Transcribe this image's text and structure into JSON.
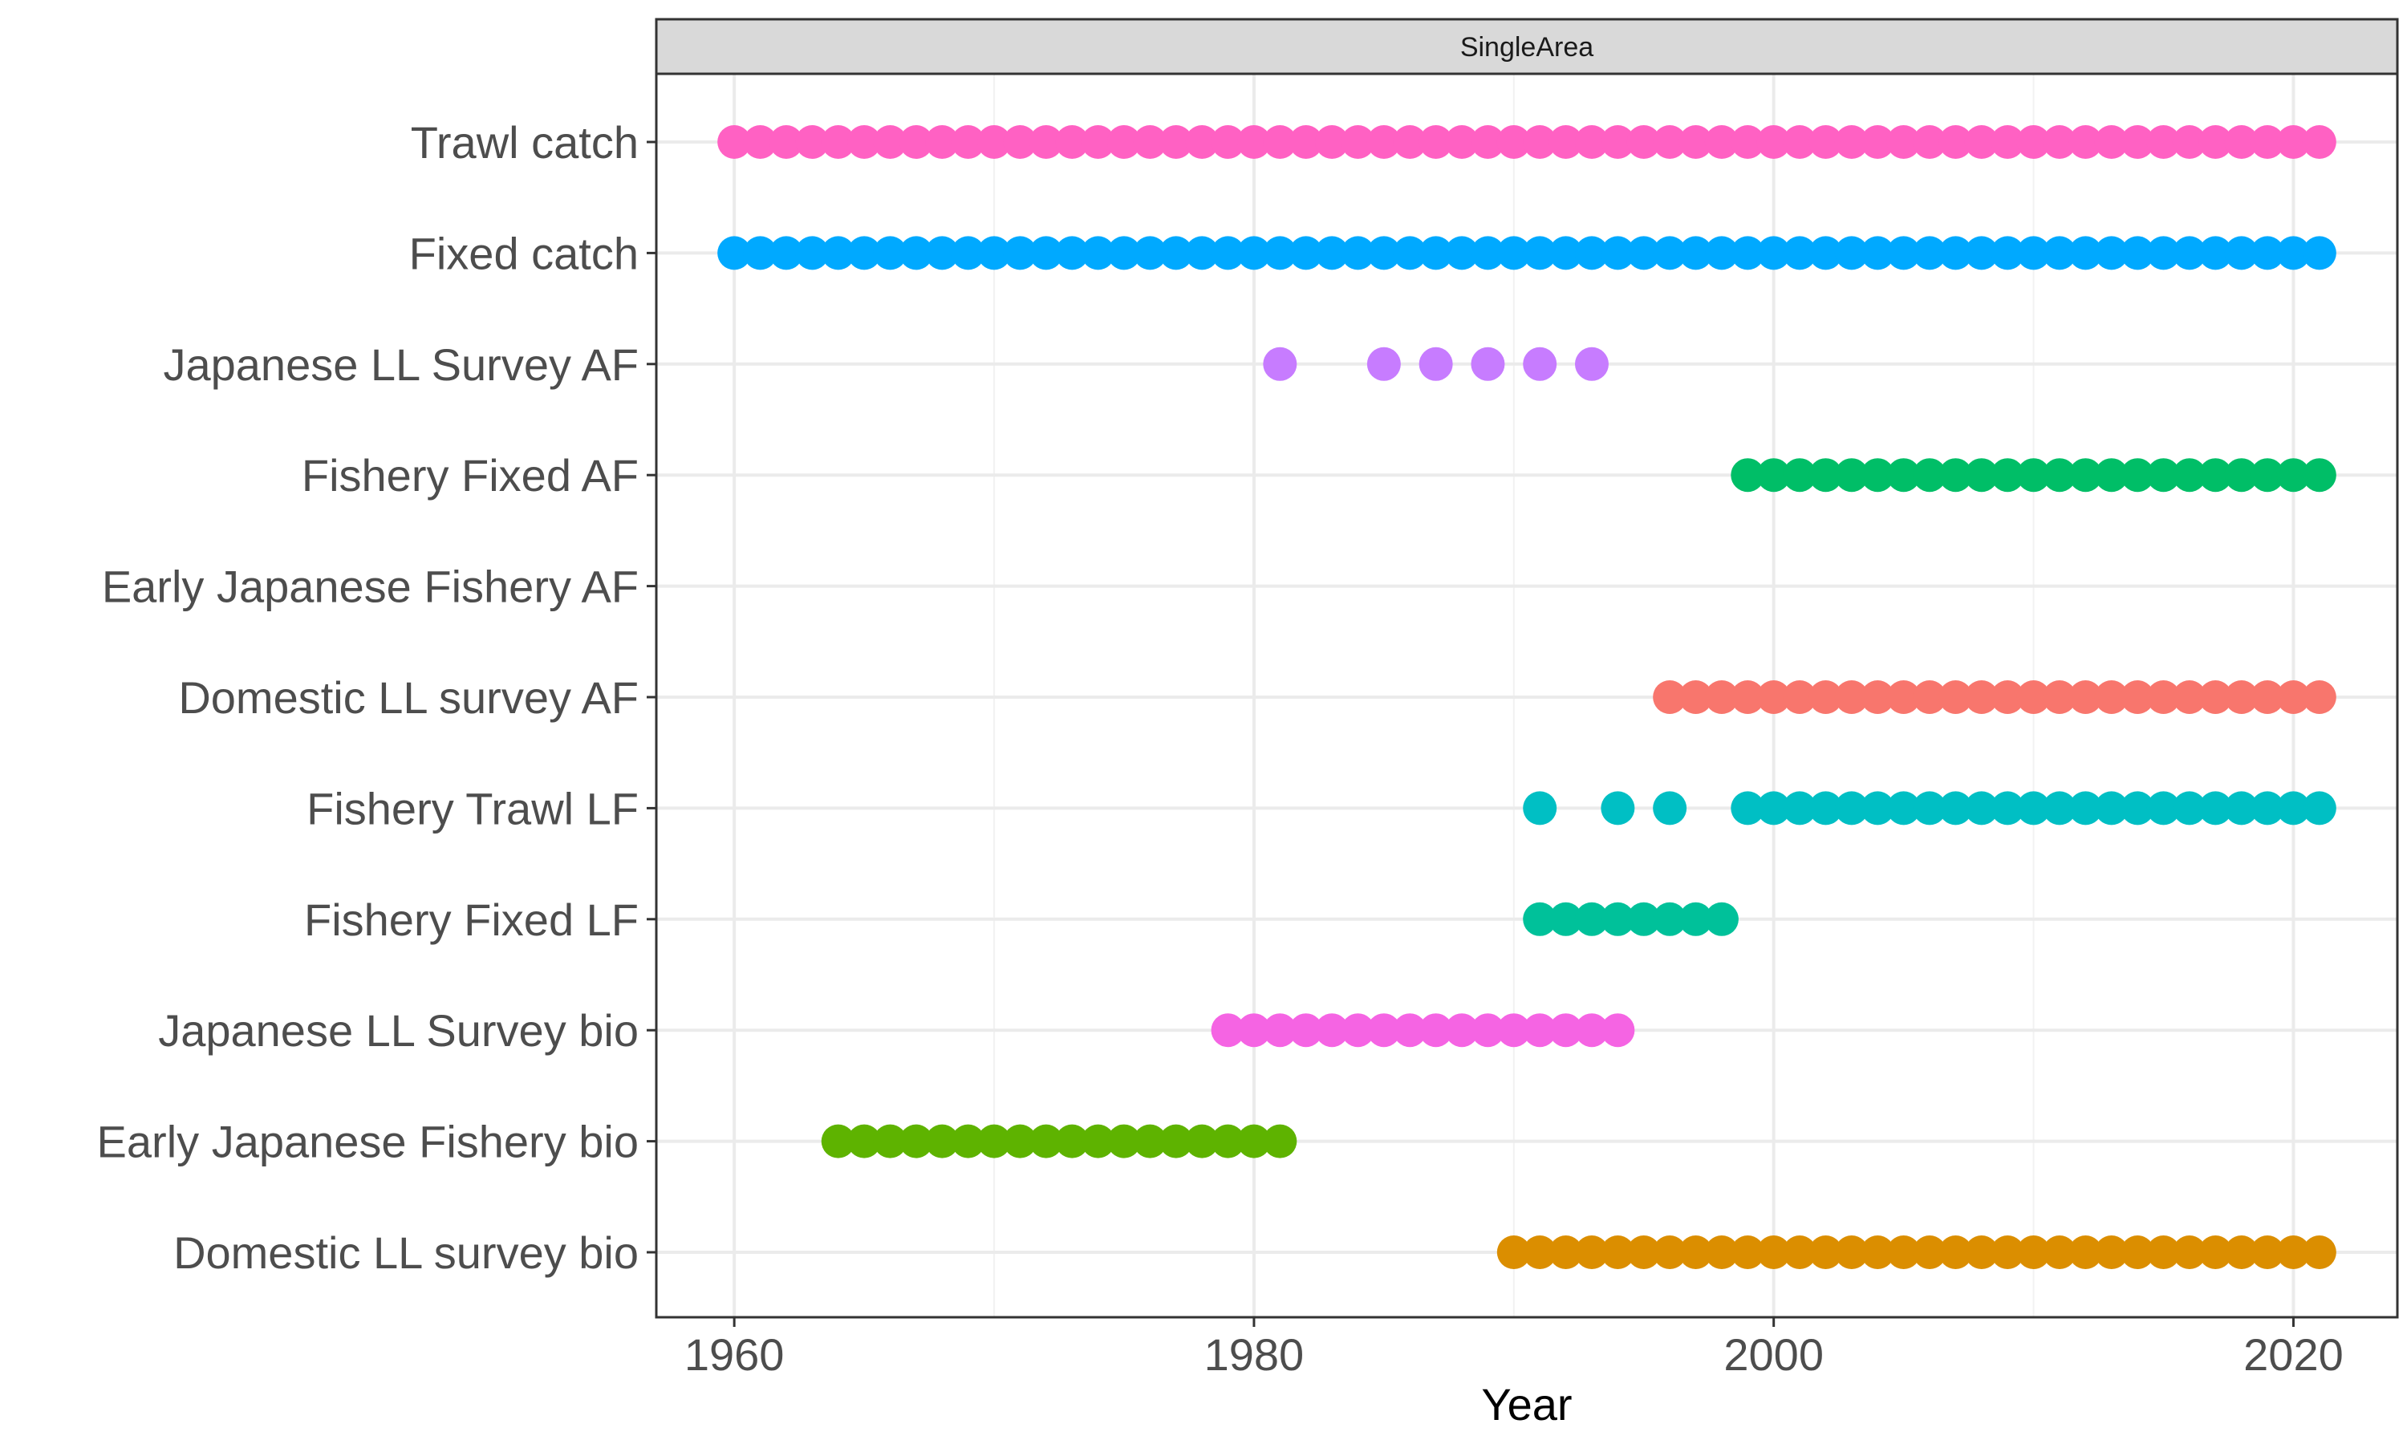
{
  "chart_data": {
    "type": "scatter",
    "title": "",
    "facet_label": "SingleArea",
    "xlabel": "Year",
    "ylabel": "",
    "xlim": [
      1957,
      2024
    ],
    "x_ticks": [
      1960,
      1980,
      2000,
      2020
    ],
    "grid": true,
    "legend": "none",
    "categories": [
      "Trawl catch",
      "Fixed catch",
      "Japanese LL Survey AF",
      "Fishery Fixed AF",
      "Early Japanese Fishery AF",
      "Domestic LL survey AF",
      "Fishery Trawl LF",
      "Fishery Fixed LF",
      "Japanese LL Survey bio",
      "Early Japanese Fishery bio",
      "Domestic LL survey bio"
    ],
    "series": [
      {
        "category": "Trawl catch",
        "color": "#FF61C3",
        "years": [
          1960,
          1961,
          1962,
          1963,
          1964,
          1965,
          1966,
          1967,
          1968,
          1969,
          1970,
          1971,
          1972,
          1973,
          1974,
          1975,
          1976,
          1977,
          1978,
          1979,
          1980,
          1981,
          1982,
          1983,
          1984,
          1985,
          1986,
          1987,
          1988,
          1989,
          1990,
          1991,
          1992,
          1993,
          1994,
          1995,
          1996,
          1997,
          1998,
          1999,
          2000,
          2001,
          2002,
          2003,
          2004,
          2005,
          2006,
          2007,
          2008,
          2009,
          2010,
          2011,
          2012,
          2013,
          2014,
          2015,
          2016,
          2017,
          2018,
          2019,
          2020,
          2021
        ]
      },
      {
        "category": "Fixed catch",
        "color": "#00A9FF",
        "years": [
          1960,
          1961,
          1962,
          1963,
          1964,
          1965,
          1966,
          1967,
          1968,
          1969,
          1970,
          1971,
          1972,
          1973,
          1974,
          1975,
          1976,
          1977,
          1978,
          1979,
          1980,
          1981,
          1982,
          1983,
          1984,
          1985,
          1986,
          1987,
          1988,
          1989,
          1990,
          1991,
          1992,
          1993,
          1994,
          1995,
          1996,
          1997,
          1998,
          1999,
          2000,
          2001,
          2002,
          2003,
          2004,
          2005,
          2006,
          2007,
          2008,
          2009,
          2010,
          2011,
          2012,
          2013,
          2014,
          2015,
          2016,
          2017,
          2018,
          2019,
          2020,
          2021
        ]
      },
      {
        "category": "Japanese LL Survey AF",
        "color": "#C77CFF",
        "years": [
          1981,
          1985,
          1987,
          1989,
          1991,
          1993
        ]
      },
      {
        "category": "Fishery Fixed AF",
        "color": "#00BE67",
        "years": [
          1999,
          2000,
          2001,
          2002,
          2003,
          2004,
          2005,
          2006,
          2007,
          2008,
          2009,
          2010,
          2011,
          2012,
          2013,
          2014,
          2015,
          2016,
          2017,
          2018,
          2019,
          2020,
          2021
        ]
      },
      {
        "category": "Early Japanese Fishery AF",
        "color": "#7CAE00",
        "years": []
      },
      {
        "category": "Domestic LL survey AF",
        "color": "#F8766D",
        "years": [
          1996,
          1997,
          1998,
          1999,
          2000,
          2001,
          2002,
          2003,
          2004,
          2005,
          2006,
          2007,
          2008,
          2009,
          2010,
          2011,
          2012,
          2013,
          2014,
          2015,
          2016,
          2017,
          2018,
          2019,
          2020,
          2021
        ]
      },
      {
        "category": "Fishery Trawl LF",
        "color": "#00BFC4",
        "years": [
          1991,
          1994,
          1996,
          1999,
          2000,
          2001,
          2002,
          2003,
          2004,
          2005,
          2006,
          2007,
          2008,
          2009,
          2010,
          2011,
          2012,
          2013,
          2014,
          2015,
          2016,
          2017,
          2018,
          2019,
          2020,
          2021
        ]
      },
      {
        "category": "Fishery Fixed LF",
        "color": "#00C19A",
        "years": [
          1991,
          1992,
          1993,
          1994,
          1995,
          1996,
          1997,
          1998
        ]
      },
      {
        "category": "Japanese LL Survey bio",
        "color": "#F564E3",
        "years": [
          1979,
          1980,
          1981,
          1982,
          1983,
          1984,
          1985,
          1986,
          1987,
          1988,
          1989,
          1990,
          1991,
          1992,
          1993,
          1994
        ]
      },
      {
        "category": "Early Japanese Fishery bio",
        "color": "#5EB300",
        "years": [
          1964,
          1965,
          1966,
          1967,
          1968,
          1969,
          1970,
          1971,
          1972,
          1973,
          1974,
          1975,
          1976,
          1977,
          1978,
          1979,
          1980,
          1981
        ]
      },
      {
        "category": "Domestic LL survey bio",
        "color": "#DB8E00",
        "years": [
          1990,
          1991,
          1992,
          1993,
          1994,
          1995,
          1996,
          1997,
          1998,
          1999,
          2000,
          2001,
          2002,
          2003,
          2004,
          2005,
          2006,
          2007,
          2008,
          2009,
          2010,
          2011,
          2012,
          2013,
          2014,
          2015,
          2016,
          2017,
          2018,
          2019,
          2020,
          2021
        ]
      }
    ]
  }
}
